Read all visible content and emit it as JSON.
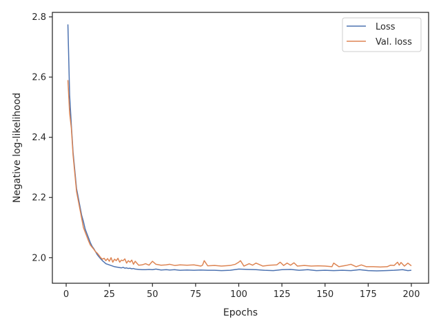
{
  "chart_data": {
    "type": "line",
    "title": "",
    "xlabel": "Epochs",
    "ylabel": "Negative log-likelihood",
    "xlim": [
      -8,
      210
    ],
    "ylim": [
      1.915,
      2.815
    ],
    "xticks": [
      0,
      25,
      50,
      75,
      100,
      125,
      150,
      175,
      200
    ],
    "yticks": [
      2.0,
      2.2,
      2.4,
      2.6,
      2.8
    ],
    "ytick_labels": [
      "2.0",
      "2.2",
      "2.4",
      "2.6",
      "2.8"
    ],
    "grid": false,
    "legend_position": "top-right",
    "series": [
      {
        "name": "Loss",
        "color": "#4c72b0",
        "x": [
          1,
          2,
          3,
          4,
          5,
          6,
          7,
          8,
          9,
          10,
          11,
          12,
          13,
          14,
          15,
          16,
          17,
          18,
          19,
          20,
          21,
          22,
          23,
          24,
          25,
          26,
          27,
          28,
          29,
          30,
          31,
          32,
          33,
          34,
          35,
          36,
          37,
          38,
          39,
          40,
          42,
          44,
          46,
          48,
          50,
          52,
          55,
          58,
          60,
          63,
          66,
          70,
          74,
          78,
          82,
          86,
          90,
          95,
          100,
          105,
          110,
          115,
          120,
          125,
          130,
          135,
          140,
          145,
          150,
          155,
          160,
          165,
          170,
          175,
          180,
          185,
          190,
          195,
          198,
          200
        ],
        "y": [
          2.775,
          2.54,
          2.44,
          2.35,
          2.29,
          2.23,
          2.2,
          2.17,
          2.14,
          2.12,
          2.095,
          2.08,
          2.065,
          2.05,
          2.038,
          2.03,
          2.02,
          2.01,
          2.003,
          1.996,
          1.99,
          1.985,
          1.98,
          1.978,
          1.976,
          1.974,
          1.972,
          1.97,
          1.969,
          1.968,
          1.967,
          1.966,
          1.968,
          1.965,
          1.966,
          1.964,
          1.965,
          1.963,
          1.964,
          1.962,
          1.961,
          1.96,
          1.96,
          1.961,
          1.96,
          1.962,
          1.959,
          1.96,
          1.959,
          1.96,
          1.958,
          1.959,
          1.958,
          1.959,
          1.958,
          1.958,
          1.957,
          1.958,
          1.962,
          1.961,
          1.96,
          1.958,
          1.957,
          1.96,
          1.961,
          1.958,
          1.96,
          1.957,
          1.958,
          1.957,
          1.958,
          1.957,
          1.96,
          1.957,
          1.956,
          1.957,
          1.958,
          1.96,
          1.957,
          1.958
        ]
      },
      {
        "name": "Val. loss",
        "color": "#dd8452",
        "x": [
          1,
          2,
          3,
          4,
          5,
          6,
          7,
          8,
          9,
          10,
          11,
          12,
          13,
          14,
          15,
          16,
          17,
          18,
          19,
          20,
          21,
          22,
          23,
          24,
          25,
          26,
          27,
          28,
          29,
          30,
          31,
          32,
          33,
          34,
          35,
          36,
          37,
          38,
          39,
          40,
          42,
          44,
          46,
          48,
          50,
          52,
          55,
          58,
          60,
          63,
          66,
          70,
          74,
          78,
          79,
          80,
          82,
          86,
          90,
          95,
          98,
          100,
          101,
          103,
          106,
          108,
          110,
          114,
          118,
          122,
          124,
          126,
          128,
          130,
          132,
          134,
          138,
          142,
          146,
          150,
          154,
          155,
          158,
          162,
          165,
          168,
          171,
          174,
          178,
          182,
          186,
          188,
          190,
          192,
          193,
          194,
          196,
          198,
          200
        ],
        "y": [
          2.59,
          2.48,
          2.43,
          2.34,
          2.28,
          2.22,
          2.19,
          2.16,
          2.13,
          2.1,
          2.085,
          2.07,
          2.055,
          2.042,
          2.035,
          2.028,
          2.02,
          2.015,
          2.008,
          2.0,
          1.995,
          1.998,
          1.99,
          1.997,
          1.988,
          2.0,
          1.985,
          1.995,
          1.99,
          1.998,
          1.985,
          1.992,
          1.99,
          1.996,
          1.982,
          1.99,
          1.985,
          1.992,
          1.978,
          1.988,
          1.975,
          1.976,
          1.98,
          1.975,
          1.988,
          1.978,
          1.975,
          1.976,
          1.978,
          1.974,
          1.976,
          1.975,
          1.976,
          1.972,
          1.975,
          1.99,
          1.973,
          1.974,
          1.972,
          1.974,
          1.978,
          1.985,
          1.99,
          1.972,
          1.98,
          1.975,
          1.982,
          1.972,
          1.975,
          1.976,
          1.985,
          1.974,
          1.982,
          1.975,
          1.983,
          1.972,
          1.974,
          1.972,
          1.973,
          1.972,
          1.97,
          1.982,
          1.97,
          1.974,
          1.978,
          1.97,
          1.976,
          1.97,
          1.97,
          1.969,
          1.97,
          1.975,
          1.974,
          1.985,
          1.975,
          1.984,
          1.972,
          1.982,
          1.973
        ]
      }
    ]
  }
}
